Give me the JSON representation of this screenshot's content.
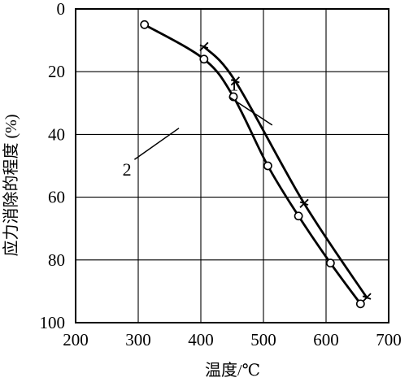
{
  "chart_data": {
    "type": "line",
    "title": "",
    "xlabel": "温度/℃",
    "ylabel": "应力消除的程度 (%)",
    "xlim": [
      200,
      700
    ],
    "ylim": [
      0,
      100
    ],
    "y_inverted": true,
    "grid": true,
    "x_ticks": [
      "200",
      "300",
      "400",
      "500",
      "600",
      "700"
    ],
    "y_ticks": [
      "0",
      "20",
      "40",
      "60",
      "80",
      "100"
    ],
    "series": [
      {
        "name": "1",
        "marker": "cross",
        "x": [
          405,
          455,
          565,
          665
        ],
        "y": [
          12,
          23,
          62,
          92
        ]
      },
      {
        "name": "2",
        "marker": "circle",
        "x": [
          310,
          405,
          452,
          507,
          556,
          607,
          655
        ],
        "y": [
          5,
          16,
          28,
          50,
          66,
          81,
          94
        ]
      }
    ]
  }
}
